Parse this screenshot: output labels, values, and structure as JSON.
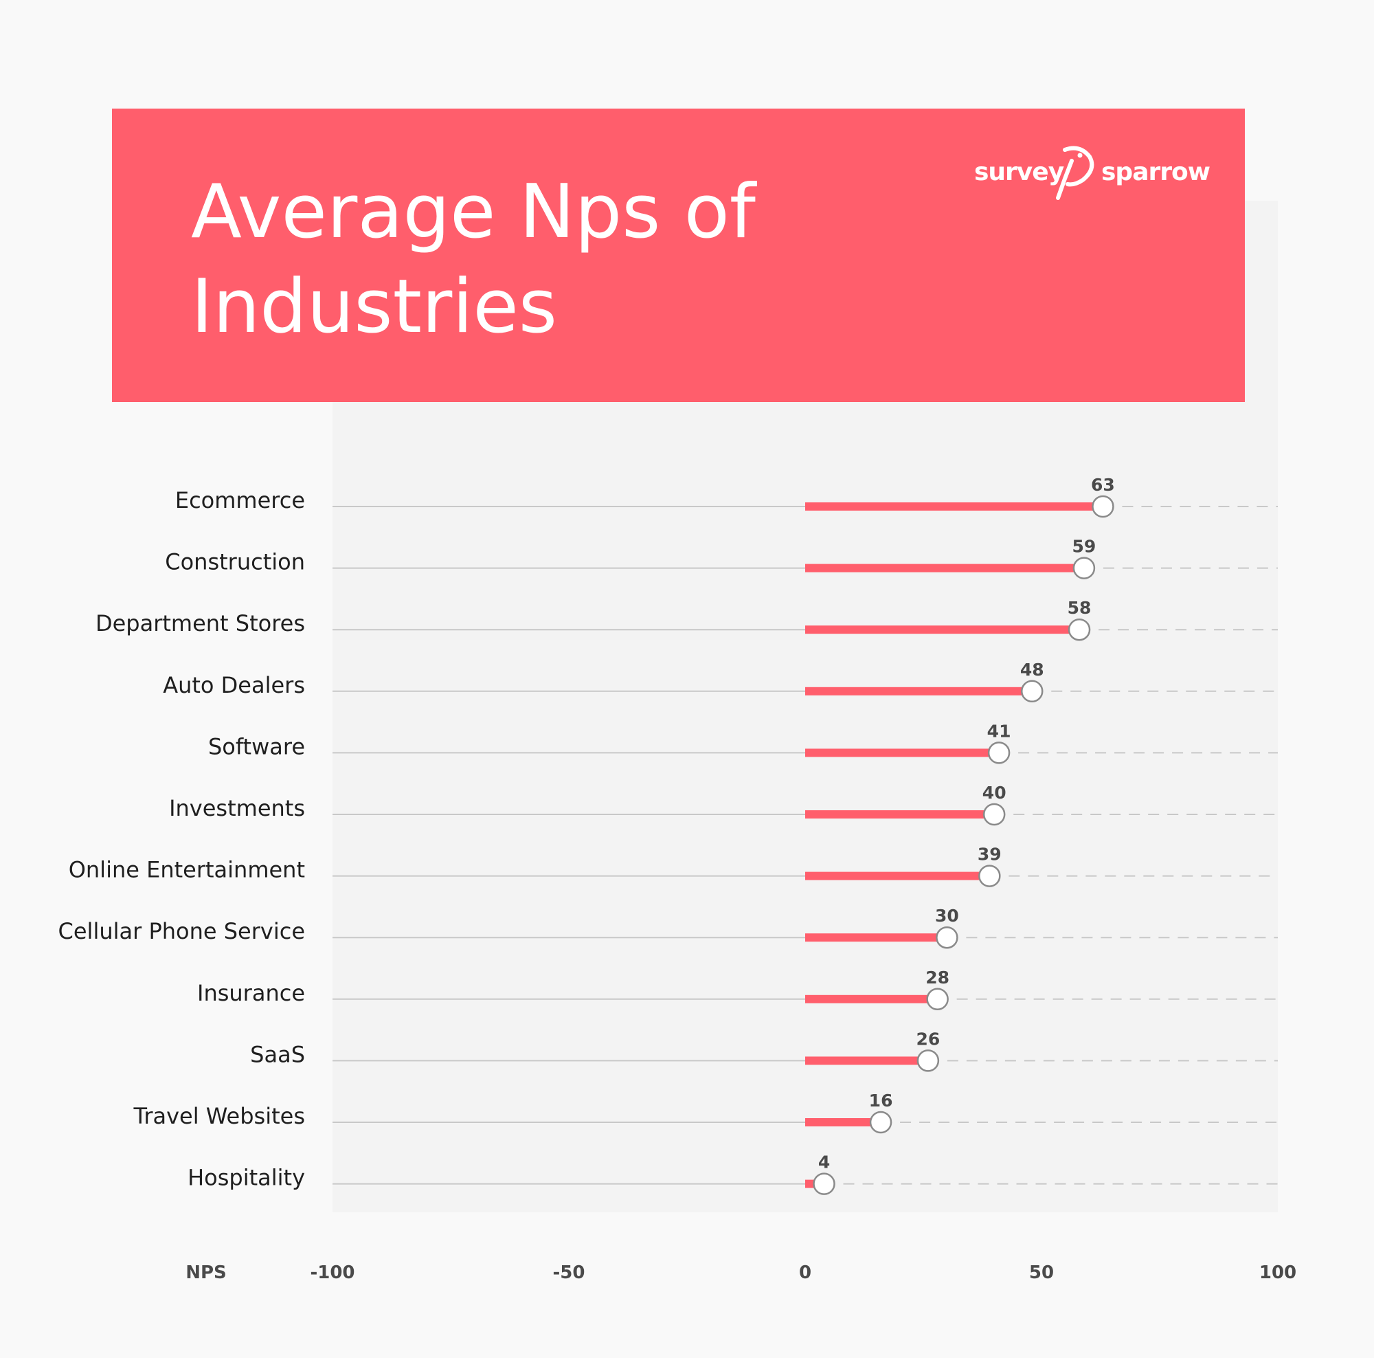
{
  "header": {
    "title_line1": "Average Nps of",
    "title_line2": "Industries",
    "logo": {
      "part1": "survey",
      "part2": "sparrow",
      "icon": "sparrow-bird-icon"
    }
  },
  "colors": {
    "accent": "#ff5e6c",
    "plot_bg": "#f3f3f3",
    "page_bg": "#f9f9f9",
    "axis_line": "#c8c8c8",
    "label_text": "#1f1f1f",
    "value_text": "#4a4a4a"
  },
  "chart_data": {
    "type": "bar",
    "orientation": "horizontal",
    "title": "Average Nps of Industries",
    "xlabel": "NPS",
    "xlim": [
      -100,
      100
    ],
    "xticks": [
      "-100",
      "-50",
      "0",
      "50",
      "100"
    ],
    "categories": [
      "Ecommerce",
      "Construction",
      "Department Stores",
      "Auto Dealers",
      "Software",
      "Investments",
      "Online Entertainment",
      "Cellular Phone Service",
      "Insurance",
      "SaaS",
      "Travel Websites",
      "Hospitality"
    ],
    "values": [
      63,
      59,
      58,
      48,
      41,
      40,
      39,
      30,
      28,
      26,
      16,
      4
    ],
    "legend": "none",
    "grid": false
  }
}
